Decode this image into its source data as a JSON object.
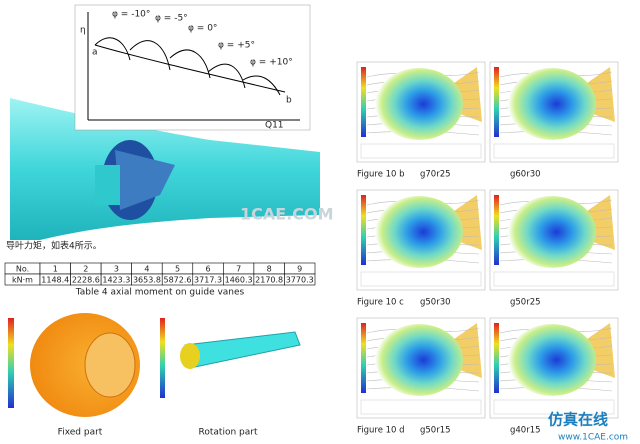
{
  "diagram": {
    "y_axis": "η",
    "x_axis": "Q11",
    "curves": [
      "φ = -10°",
      "φ = -5°",
      "φ = 0°",
      "φ = +5°",
      "φ = +10°"
    ],
    "start": "a",
    "end": "b"
  },
  "note": "导叶力矩，如表4所示。",
  "table": {
    "header": [
      "No.",
      1,
      2,
      3,
      4,
      5,
      6,
      7,
      8,
      9
    ],
    "rows": [
      [
        "kN·m",
        1148.4,
        2228.6,
        1423.3,
        3653.8,
        5872.6,
        3717.3,
        1460.3,
        2170.8,
        3770.3
      ]
    ],
    "caption": "Table 4 axial moment on guide vanes"
  },
  "left_figures": [
    "Fixed part",
    "Rotation part"
  ],
  "right_figures": [
    {
      "figure": "Figure 10 b",
      "left": "g70r25",
      "right": "g60r30"
    },
    {
      "figure": "Figure 10 c",
      "left": "g50r30",
      "right": "g50r25"
    },
    {
      "figure": "Figure 10 d",
      "left": "g50r15",
      "right": "g40r15"
    }
  ],
  "watermark": "1CAE.COM",
  "logo": "仿真在线",
  "url": "www.1CAE.com"
}
